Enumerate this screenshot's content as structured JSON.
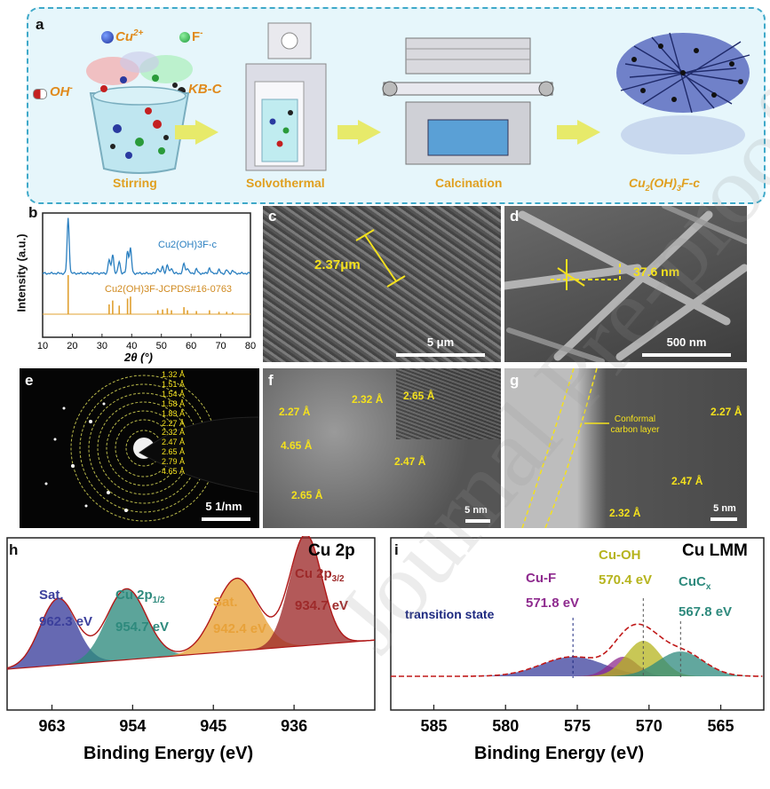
{
  "panel_a": {
    "label": "a",
    "ion_cu": "Cu",
    "ion_cu_sup": "2+",
    "ion_f": "F",
    "ion_f_sup": "-",
    "ion_oh": "OH",
    "ion_oh_sup": "-",
    "kb": "KB-C",
    "steps": [
      "Stirring",
      "Solvothermal",
      "Calcination"
    ],
    "product_1": "Cu",
    "product_sub1": "2",
    "product_2": "(OH)",
    "product_sub2": "3",
    "product_3": "F-c"
  },
  "panel_b": {
    "label": "b",
    "ylabel": "Intensity (a.u.)",
    "xlabel": "2θ (°)",
    "series_top": "Cu2(OH)3F-c",
    "series_ref": "Cu2(OH)3F-JCPDS#16-0763"
  },
  "panel_c": {
    "label": "c",
    "measure": "2.37μm",
    "scale": "5 μm"
  },
  "panel_d": {
    "label": "d",
    "measure": "37.6 nm",
    "scale": "500 nm"
  },
  "panel_e": {
    "label": "e",
    "rings": [
      "1.32 Å",
      "1.51 Å",
      "1.54 Å",
      "1.58 Å",
      "1.83 Å",
      "2.27 Å",
      "2.32 Å",
      "2.47 Å",
      "2.65 Å",
      "2.79 Å",
      "4.65 Å"
    ],
    "scale": "5 1/nm"
  },
  "panel_f": {
    "label": "f",
    "d1": "2.27 Å",
    "d2": "2.32 Å",
    "d3": "2.65 Å",
    "d4": "4.65 Å",
    "d5": "2.47 Å",
    "d6": "2.65 Å",
    "scale": "5 nm"
  },
  "panel_g": {
    "label": "g",
    "note": "Conformal carbon layer",
    "d1": "2.27 Å",
    "d2": "2.47 Å",
    "d3": "2.32 Å",
    "scale": "5 nm"
  },
  "panel_h": {
    "label": "h",
    "title": "Cu 2p",
    "xlabel": "Binding Energy (eV)",
    "peaks": [
      {
        "name": "Sat.",
        "value": "962.3 eV",
        "color": "#3b3f9c"
      },
      {
        "name": "Cu 2p",
        "sub": "1/2",
        "value": "954.7 eV",
        "color": "#2e8a7d"
      },
      {
        "name": "Sat.",
        "value": "942.4 eV",
        "color": "#e8a23a"
      },
      {
        "name": "Cu 2p",
        "sub": "3/2",
        "value": "934.7 eV",
        "color": "#9e2a2a"
      }
    ]
  },
  "panel_i": {
    "label": "i",
    "title": "Cu LMM",
    "xlabel": "Binding Energy (eV)",
    "transition": "transition state",
    "peaks": [
      {
        "name": "Cu-F",
        "value": "571.8 eV",
        "color": "#8e2a8e"
      },
      {
        "name": "Cu-OH",
        "value": "570.4 eV",
        "color": "#b6b41e"
      },
      {
        "name": "CuC",
        "sub": "x",
        "value": "567.8 eV",
        "color": "#2e8a7d"
      }
    ]
  },
  "chart_data": [
    {
      "type": "line",
      "panel": "b",
      "xlabel": "2θ (°)",
      "ylabel": "Intensity (a.u.)",
      "xlim": [
        10,
        80
      ],
      "x_ticks": [
        10,
        20,
        30,
        40,
        50,
        60,
        70,
        80
      ],
      "series": [
        {
          "name": "Cu2(OH)3F-c",
          "color": "#2a7fc0"
        },
        {
          "name": "Cu2(OH)3F-JCPDS#16-0763",
          "color": "#e0a030",
          "x": [
            18.6,
            32.4,
            33.6,
            35.8,
            38.6,
            39.6,
            48.8,
            50.4,
            52.0,
            53.4,
            57.6,
            58.8,
            61.8,
            66.2,
            69.4,
            72.0,
            74.0
          ],
          "values": [
            1.0,
            0.25,
            0.35,
            0.22,
            0.4,
            0.45,
            0.1,
            0.12,
            0.15,
            0.1,
            0.18,
            0.1,
            0.08,
            0.1,
            0.06,
            0.06,
            0.05
          ]
        }
      ]
    },
    {
      "type": "line",
      "panel": "h",
      "title": "Cu 2p",
      "xlabel": "Binding Energy (eV)",
      "xlim": [
        968,
        927
      ],
      "x_ticks": [
        963,
        954,
        945,
        936
      ],
      "series": [
        {
          "name": "Sat.",
          "center": 962.3,
          "color": "#3b3f9c"
        },
        {
          "name": "Cu 2p1/2",
          "center": 954.7,
          "color": "#2e8a7d"
        },
        {
          "name": "Sat.",
          "center": 942.4,
          "color": "#e8a23a"
        },
        {
          "name": "Cu 2p3/2",
          "center": 934.7,
          "color": "#9e2a2a"
        }
      ]
    },
    {
      "type": "line",
      "panel": "i",
      "title": "Cu LMM",
      "xlabel": "Binding Energy (eV)",
      "xlim": [
        588,
        562
      ],
      "x_ticks": [
        585,
        580,
        575,
        570,
        565
      ],
      "series": [
        {
          "name": "transition state",
          "center": 575.3,
          "color": "#3b3f9c"
        },
        {
          "name": "Cu-F",
          "center": 571.8,
          "color": "#8e2a8e"
        },
        {
          "name": "Cu-OH",
          "center": 570.4,
          "color": "#b6b41e"
        },
        {
          "name": "CuCx",
          "center": 567.8,
          "color": "#2e8a7d"
        }
      ]
    }
  ]
}
